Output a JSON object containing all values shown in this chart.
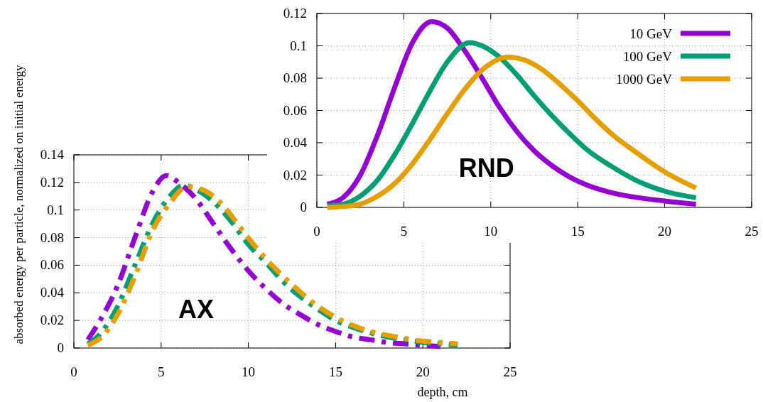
{
  "chart_data": [
    {
      "type": "line",
      "xlabel": "depth, cm",
      "ylabel": "absorbed energy per particle, normalized on initial energy",
      "annotations": [
        "AX"
      ],
      "xlim": [
        0,
        25
      ],
      "ylim": [
        0,
        0.14
      ],
      "xticks": [
        0,
        5,
        10,
        15,
        20,
        25
      ],
      "yticks": [
        0,
        0.02,
        0.04,
        0.06,
        0.08,
        0.1,
        0.12,
        0.14
      ],
      "grid": true,
      "line_style": "dashed",
      "series": [
        {
          "color": "#9400d3",
          "x": [
            0.8,
            1.5,
            2.5,
            3.5,
            4.5,
            5.3,
            6,
            7,
            8,
            9,
            10,
            11,
            12,
            13,
            14,
            15,
            16,
            17,
            18,
            19,
            20,
            21
          ],
          "values": [
            0.006,
            0.02,
            0.045,
            0.08,
            0.113,
            0.125,
            0.12,
            0.108,
            0.09,
            0.072,
            0.056,
            0.043,
            0.032,
            0.024,
            0.017,
            0.012,
            0.008,
            0.006,
            0.004,
            0.003,
            0.002,
            0.001
          ]
        },
        {
          "color": "#009e73",
          "x": [
            0.8,
            1.5,
            2.5,
            3.5,
            4.5,
            5.5,
            6.3,
            7,
            8,
            9,
            10,
            11,
            12,
            13,
            14,
            15,
            16,
            17,
            18,
            19,
            20,
            21,
            22
          ],
          "values": [
            0.003,
            0.01,
            0.03,
            0.06,
            0.09,
            0.11,
            0.118,
            0.115,
            0.106,
            0.092,
            0.075,
            0.062,
            0.048,
            0.037,
            0.028,
            0.02,
            0.015,
            0.011,
            0.008,
            0.006,
            0.004,
            0.003,
            0.002
          ]
        },
        {
          "color": "#e69f00",
          "x": [
            0.8,
            1.5,
            2.5,
            3.5,
            4.5,
            5.5,
            6.5,
            7.5,
            8.5,
            9.5,
            10.5,
            11.5,
            12.5,
            13.5,
            14.5,
            15.5,
            17,
            18.5,
            20,
            21,
            22
          ],
          "values": [
            0.002,
            0.007,
            0.024,
            0.052,
            0.085,
            0.105,
            0.117,
            0.114,
            0.104,
            0.088,
            0.072,
            0.058,
            0.046,
            0.035,
            0.026,
            0.019,
            0.012,
            0.008,
            0.005,
            0.004,
            0.003
          ]
        }
      ]
    },
    {
      "type": "line",
      "annotations": [
        "RND"
      ],
      "xlim": [
        0,
        25
      ],
      "ylim": [
        0,
        0.12
      ],
      "xticks": [
        0,
        5,
        10,
        15,
        20,
        25
      ],
      "yticks": [
        0,
        0.02,
        0.04,
        0.06,
        0.08,
        0.1,
        0.12
      ],
      "grid": true,
      "line_style": "solid",
      "legend": "top right",
      "series": [
        {
          "name": "10 GeV",
          "color": "#9400d3",
          "x": [
            0.6,
            1.5,
            2.5,
            3.5,
            4.5,
            5.5,
            6.6,
            7.5,
            8.5,
            9.5,
            10.5,
            11.5,
            12.5,
            13.5,
            14.5,
            15.5,
            17,
            18.5,
            20,
            21.8
          ],
          "values": [
            0.002,
            0.006,
            0.02,
            0.045,
            0.075,
            0.102,
            0.115,
            0.111,
            0.097,
            0.08,
            0.062,
            0.047,
            0.035,
            0.026,
            0.019,
            0.014,
            0.009,
            0.006,
            0.004,
            0.002
          ]
        },
        {
          "name": "100 GeV",
          "color": "#009e73",
          "x": [
            0.6,
            1.5,
            2.5,
            3.5,
            4.5,
            5.5,
            6.5,
            7.5,
            8.8,
            9.5,
            10.5,
            11.5,
            12.5,
            13.5,
            14.5,
            15.5,
            17,
            18.5,
            20,
            21.8
          ],
          "values": [
            0.001,
            0.002,
            0.007,
            0.017,
            0.033,
            0.052,
            0.072,
            0.09,
            0.102,
            0.1,
            0.093,
            0.082,
            0.069,
            0.057,
            0.046,
            0.036,
            0.025,
            0.016,
            0.01,
            0.006
          ]
        },
        {
          "name": "1000 GeV",
          "color": "#e69f00",
          "x": [
            0.6,
            1.5,
            2.5,
            3.5,
            4.5,
            5.5,
            6.5,
            7.5,
            8.5,
            9.5,
            11,
            12,
            13,
            14,
            15,
            16,
            17,
            18.5,
            20,
            21.8
          ],
          "values": [
            0,
            0.0005,
            0.002,
            0.007,
            0.015,
            0.027,
            0.042,
            0.058,
            0.073,
            0.085,
            0.093,
            0.091,
            0.085,
            0.076,
            0.066,
            0.055,
            0.045,
            0.033,
            0.022,
            0.012
          ]
        }
      ]
    }
  ]
}
